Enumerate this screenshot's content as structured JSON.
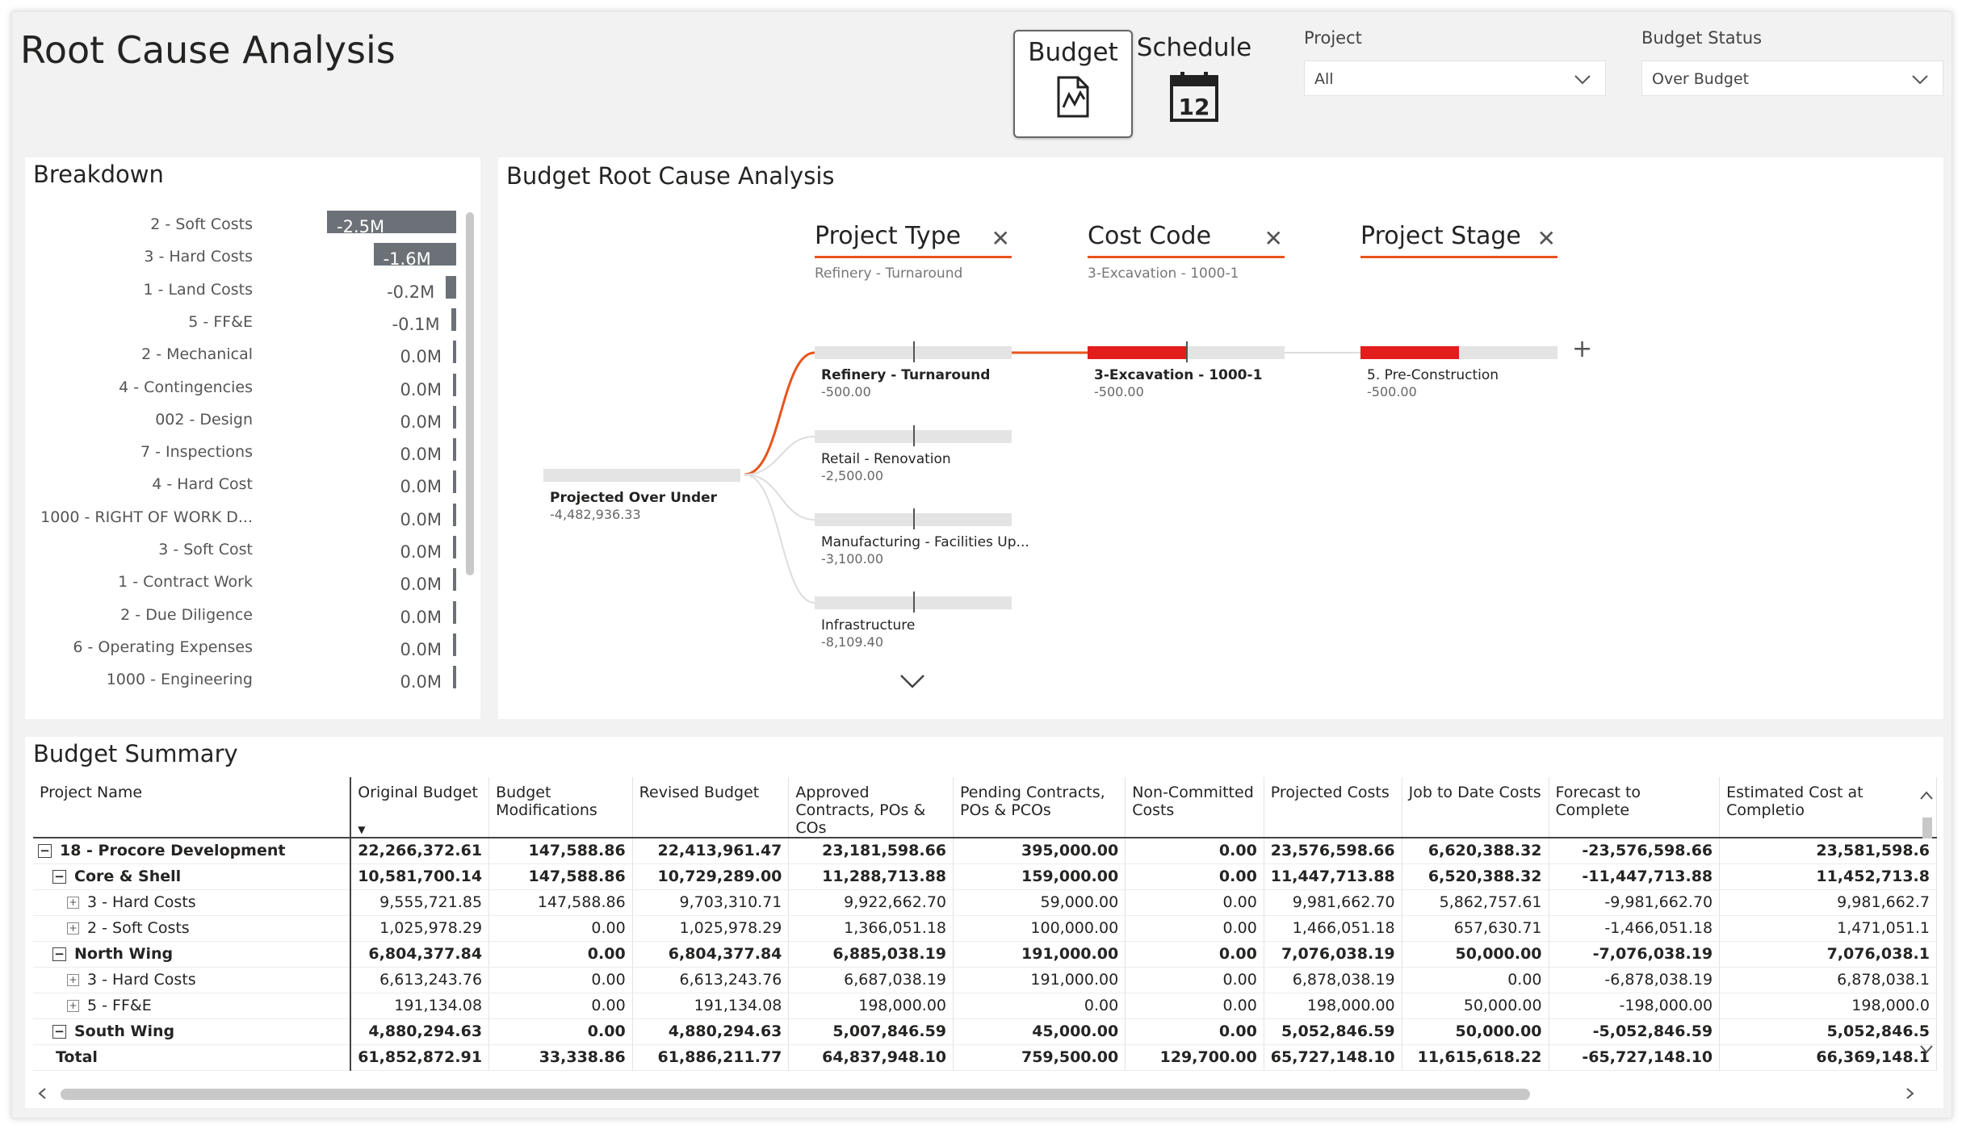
{
  "page": {
    "title": "Root Cause Analysis"
  },
  "nav": {
    "budget": "Budget",
    "schedule": "Schedule",
    "schedule_icon_number": "12"
  },
  "slicers": {
    "project": {
      "label": "Project",
      "value": "All"
    },
    "status": {
      "label": "Budget Status",
      "value": "Over Budget"
    }
  },
  "breakdown": {
    "title": "Breakdown",
    "max_abs_value": 2.5,
    "items": [
      {
        "label": "2 - Soft Costs",
        "value": "-2.5M",
        "amount": -2.5
      },
      {
        "label": "3 - Hard Costs",
        "value": "-1.6M",
        "amount": -1.6
      },
      {
        "label": "1 - Land Costs",
        "value": "-0.2M",
        "amount": -0.2
      },
      {
        "label": "5 - FF&E",
        "value": "-0.1M",
        "amount": -0.1
      },
      {
        "label": "2 - Mechanical",
        "value": "0.0M",
        "amount": 0
      },
      {
        "label": "4 - Contingencies",
        "value": "0.0M",
        "amount": 0
      },
      {
        "label": "002 - Design",
        "value": "0.0M",
        "amount": 0
      },
      {
        "label": "7 - Inspections",
        "value": "0.0M",
        "amount": 0
      },
      {
        "label": "4 - Hard Cost",
        "value": "0.0M",
        "amount": 0
      },
      {
        "label": "1000 - RIGHT OF WORK D...",
        "value": "0.0M",
        "amount": 0
      },
      {
        "label": "3 - Soft Cost",
        "value": "0.0M",
        "amount": 0
      },
      {
        "label": "1 - Contract Work",
        "value": "0.0M",
        "amount": 0
      },
      {
        "label": "2 - Due Diligence",
        "value": "0.0M",
        "amount": 0
      },
      {
        "label": "6 - Operating Expenses",
        "value": "0.0M",
        "amount": 0
      },
      {
        "label": "1000 - Engineering",
        "value": "0.0M",
        "amount": 0
      }
    ]
  },
  "tree": {
    "title": "Budget Root Cause Analysis",
    "root": {
      "label": "Projected Over Under",
      "value": "-4,482,936.33"
    },
    "levels": [
      {
        "title": "Project Type",
        "filter": "Refinery - Turnaround"
      },
      {
        "title": "Cost Code",
        "filter": "3-Excavation - 1000-1"
      },
      {
        "title": "Project Stage",
        "filter": ""
      }
    ],
    "level1_nodes": [
      {
        "label": "Refinery - Turnaround",
        "value": "-500.00"
      },
      {
        "label": "Retail - Renovation",
        "value": "-2,500.00"
      },
      {
        "label": "Manufacturing - Facilities Up...",
        "value": "-3,100.00"
      },
      {
        "label": "Infrastructure",
        "value": "-8,109.40"
      }
    ],
    "level2_node": {
      "label": "3-Excavation - 1000-1",
      "value": "-500.00"
    },
    "level3_node": {
      "label": "5. Pre-Construction",
      "value": "-500.00"
    },
    "add_symbol": "+"
  },
  "summary": {
    "title": "Budget Summary",
    "columns": [
      "Project Name",
      "Original Budget",
      "Budget Modifications",
      "Revised Budget",
      "Approved Contracts, POs & COs",
      "Pending Contracts, POs & PCOs",
      "Non-Committed Costs",
      "Projected Costs",
      "Job to Date Costs",
      "Forecast to Complete",
      "Estimated Cost at Completio"
    ],
    "rows": [
      {
        "name": "18 - Procore Development",
        "level": 0,
        "bold": true,
        "vals": [
          "22,266,372.61",
          "147,588.86",
          "22,413,961.47",
          "23,181,598.66",
          "395,000.00",
          "0.00",
          "23,576,598.66",
          "6,620,388.32",
          "-23,576,598.66",
          "23,581,598.6"
        ]
      },
      {
        "name": "Core & Shell",
        "level": 1,
        "bold": true,
        "vals": [
          "10,581,700.14",
          "147,588.86",
          "10,729,289.00",
          "11,288,713.88",
          "159,000.00",
          "0.00",
          "11,447,713.88",
          "6,520,388.32",
          "-11,447,713.88",
          "11,452,713.8"
        ]
      },
      {
        "name": "3 - Hard Costs",
        "level": 2,
        "bold": false,
        "vals": [
          "9,555,721.85",
          "147,588.86",
          "9,703,310.71",
          "9,922,662.70",
          "59,000.00",
          "0.00",
          "9,981,662.70",
          "5,862,757.61",
          "-9,981,662.70",
          "9,981,662.7"
        ]
      },
      {
        "name": "2 - Soft Costs",
        "level": 2,
        "bold": false,
        "vals": [
          "1,025,978.29",
          "0.00",
          "1,025,978.29",
          "1,366,051.18",
          "100,000.00",
          "0.00",
          "1,466,051.18",
          "657,630.71",
          "-1,466,051.18",
          "1,471,051.1"
        ]
      },
      {
        "name": "North Wing",
        "level": 1,
        "bold": true,
        "vals": [
          "6,804,377.84",
          "0.00",
          "6,804,377.84",
          "6,885,038.19",
          "191,000.00",
          "0.00",
          "7,076,038.19",
          "50,000.00",
          "-7,076,038.19",
          "7,076,038.1"
        ]
      },
      {
        "name": "3 - Hard Costs",
        "level": 2,
        "bold": false,
        "vals": [
          "6,613,243.76",
          "0.00",
          "6,613,243.76",
          "6,687,038.19",
          "191,000.00",
          "0.00",
          "6,878,038.19",
          "0.00",
          "-6,878,038.19",
          "6,878,038.1"
        ]
      },
      {
        "name": "5 - FF&E",
        "level": 2,
        "bold": false,
        "vals": [
          "191,134.08",
          "0.00",
          "191,134.08",
          "198,000.00",
          "0.00",
          "0.00",
          "198,000.00",
          "50,000.00",
          "-198,000.00",
          "198,000.0"
        ]
      },
      {
        "name": "South Wing",
        "level": 1,
        "bold": true,
        "vals": [
          "4,880,294.63",
          "0.00",
          "4,880,294.63",
          "5,007,846.59",
          "45,000.00",
          "0.00",
          "5,052,846.59",
          "50,000.00",
          "-5,052,846.59",
          "5,052,846.5"
        ]
      }
    ],
    "total": {
      "name": "Total",
      "vals": [
        "61,852,872.91",
        "33,338.86",
        "61,886,211.77",
        "64,837,948.10",
        "759,500.00",
        "129,700.00",
        "65,727,148.10",
        "11,615,618.22",
        "-65,727,148.10",
        "66,369,148.1"
      ]
    }
  }
}
